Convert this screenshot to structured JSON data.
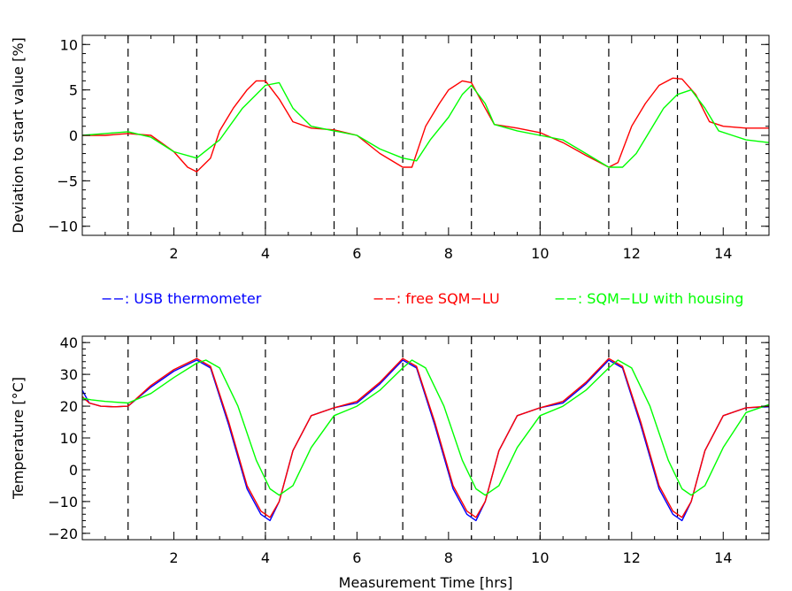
{
  "chart_data": [
    {
      "type": "line",
      "title": "",
      "xlabel": "",
      "ylabel": "Deviation to start value [%]",
      "xlim": [
        0,
        15
      ],
      "ylim": [
        -11,
        11
      ],
      "xticks": [
        2,
        4,
        6,
        8,
        10,
        12,
        14
      ],
      "yticks": [
        -10,
        -5,
        0,
        5,
        10
      ],
      "xtick_labels": [
        "2",
        "4",
        "6",
        "8",
        "10",
        "12",
        "14"
      ],
      "ytick_labels": [
        "−10",
        "−5",
        "0",
        "5",
        "10"
      ],
      "vlines": [
        1,
        2.5,
        4,
        5.5,
        7,
        8.5,
        10,
        11.5,
        13,
        14.5
      ],
      "grid": false,
      "series": [
        {
          "name": "free SQM-LU",
          "color": "#ff0000",
          "x": [
            0,
            0.5,
            1,
            1.5,
            2,
            2.3,
            2.5,
            2.8,
            3,
            3.3,
            3.6,
            3.8,
            4,
            4.3,
            4.6,
            5,
            5.5,
            6,
            6.5,
            7,
            7.2,
            7.5,
            7.8,
            8,
            8.3,
            8.5,
            8.8,
            9,
            9.5,
            10,
            10.5,
            11,
            11.5,
            11.7,
            12,
            12.3,
            12.6,
            12.9,
            13.1,
            13.4,
            13.7,
            14,
            14.5,
            15
          ],
          "y": [
            0,
            0,
            0.2,
            0,
            -1.8,
            -3.5,
            -4,
            -2.5,
            0.5,
            3,
            5,
            6,
            6,
            4,
            1.5,
            0.8,
            0.6,
            0,
            -2,
            -3.5,
            -3.5,
            1,
            3.5,
            5,
            6,
            5.8,
            3,
            1.2,
            0.8,
            0.3,
            -0.8,
            -2.2,
            -3.5,
            -3,
            1,
            3.5,
            5.5,
            6.3,
            6.2,
            4.5,
            1.5,
            1,
            0.8,
            0.8
          ]
        },
        {
          "name": "SQM-LU with housing",
          "color": "#00ff00",
          "x": [
            0,
            0.5,
            1,
            1.5,
            2,
            2.5,
            3,
            3.5,
            4,
            4.3,
            4.6,
            5,
            5.5,
            6,
            6.5,
            7,
            7.3,
            7.6,
            8,
            8.3,
            8.5,
            8.8,
            9,
            9.5,
            10,
            10.5,
            11,
            11.5,
            11.8,
            12.1,
            12.4,
            12.7,
            13,
            13.3,
            13.6,
            13.9,
            14.2,
            14.5,
            15
          ],
          "y": [
            0,
            0.2,
            0.4,
            -0.2,
            -1.8,
            -2.5,
            -0.5,
            3,
            5.5,
            5.8,
            3,
            1,
            0.5,
            0,
            -1.5,
            -2.5,
            -2.8,
            -0.5,
            2,
            4.5,
            5.5,
            3.5,
            1.2,
            0.5,
            0,
            -0.5,
            -2,
            -3.5,
            -3.5,
            -2,
            0.5,
            3,
            4.5,
            5,
            3,
            0.5,
            0,
            -0.5,
            -0.8
          ]
        }
      ]
    },
    {
      "type": "line",
      "title": "",
      "xlabel": "Measurement Time [hrs]",
      "ylabel": "Temperature [°C]",
      "xlim": [
        0,
        15
      ],
      "ylim": [
        -22,
        42
      ],
      "xticks": [
        2,
        4,
        6,
        8,
        10,
        12,
        14
      ],
      "yticks": [
        -20,
        -10,
        0,
        10,
        20,
        30,
        40
      ],
      "xtick_labels": [
        "2",
        "4",
        "6",
        "8",
        "10",
        "12",
        "14"
      ],
      "ytick_labels": [
        "−20",
        "−10",
        "0",
        "10",
        "20",
        "30",
        "40"
      ],
      "vlines": [
        1,
        2.5,
        4,
        5.5,
        7,
        8.5,
        10,
        11.5,
        13,
        14.5
      ],
      "grid": false,
      "series": [
        {
          "name": "USB thermometer",
          "color": "#0000ff",
          "x": [
            0,
            0.15,
            0.4,
            0.7,
            1,
            1.5,
            2,
            2.5,
            2.8,
            3.2,
            3.6,
            3.9,
            4.1,
            4.3,
            4.6,
            5,
            5.5,
            6,
            6.5,
            7,
            7.3,
            7.7,
            8.1,
            8.4,
            8.6,
            8.8,
            9.1,
            9.5,
            10,
            10.5,
            11,
            11.5,
            11.8,
            12.2,
            12.6,
            12.9,
            13.1,
            13.3,
            13.6,
            14,
            14.5,
            15
          ],
          "y": [
            25,
            21,
            20,
            19.8,
            20,
            26,
            31,
            34.5,
            32,
            14,
            -6,
            -14,
            -16,
            -10,
            6,
            17,
            19.5,
            21,
            27,
            34.5,
            32,
            14,
            -6,
            -14,
            -16,
            -10,
            6,
            17,
            19.5,
            21,
            27,
            34.5,
            32,
            14,
            -6,
            -14,
            -16,
            -10,
            6,
            17,
            19.5,
            19.8
          ]
        },
        {
          "name": "free SQM-LU",
          "color": "#ff0000",
          "x": [
            0,
            0.15,
            0.4,
            0.7,
            1,
            1.5,
            2,
            2.5,
            2.8,
            3.2,
            3.6,
            3.9,
            4.1,
            4.3,
            4.6,
            5,
            5.5,
            6,
            6.5,
            7,
            7.3,
            7.7,
            8.1,
            8.4,
            8.6,
            8.8,
            9.1,
            9.5,
            10,
            10.5,
            11,
            11.5,
            11.8,
            12.2,
            12.6,
            12.9,
            13.1,
            13.3,
            13.6,
            14,
            14.5,
            15
          ],
          "y": [
            23,
            21,
            20,
            19.8,
            20,
            26.5,
            31.5,
            35,
            32.5,
            15,
            -5,
            -13,
            -15,
            -10,
            6,
            17,
            19.5,
            21.5,
            27.5,
            35,
            32.5,
            15,
            -5,
            -13,
            -15,
            -10,
            6,
            17,
            19.5,
            21.5,
            27.5,
            35,
            32.5,
            15,
            -5,
            -13,
            -15,
            -10,
            6,
            17,
            19.5,
            20
          ]
        },
        {
          "name": "SQM-LU with housing",
          "color": "#00ff00",
          "x": [
            0,
            0.2,
            0.5,
            1,
            1.5,
            2,
            2.5,
            2.7,
            3,
            3.4,
            3.8,
            4.1,
            4.3,
            4.6,
            5,
            5.5,
            6,
            6.5,
            7,
            7.2,
            7.5,
            7.9,
            8.3,
            8.6,
            8.8,
            9.1,
            9.5,
            10,
            10.5,
            11,
            11.5,
            11.7,
            12,
            12.4,
            12.8,
            13.1,
            13.3,
            13.6,
            14,
            14.5,
            15
          ],
          "y": [
            22.5,
            22,
            21.5,
            21,
            24,
            29,
            33.5,
            34.5,
            32,
            20,
            3,
            -6,
            -8,
            -5,
            7,
            17,
            20,
            25,
            32,
            34.5,
            32,
            20,
            3,
            -6,
            -8,
            -5,
            7,
            17,
            20,
            25,
            32,
            34.5,
            32,
            20,
            3,
            -6,
            -8,
            -5,
            7,
            18,
            20.5
          ]
        }
      ]
    }
  ],
  "legend": [
    {
      "text": "−−: USB thermometer",
      "color": "#0000ff"
    },
    {
      "text": "−−: free SQM−LU",
      "color": "#ff0000"
    },
    {
      "text": "−−: SQM−LU with housing",
      "color": "#00ff00"
    }
  ]
}
